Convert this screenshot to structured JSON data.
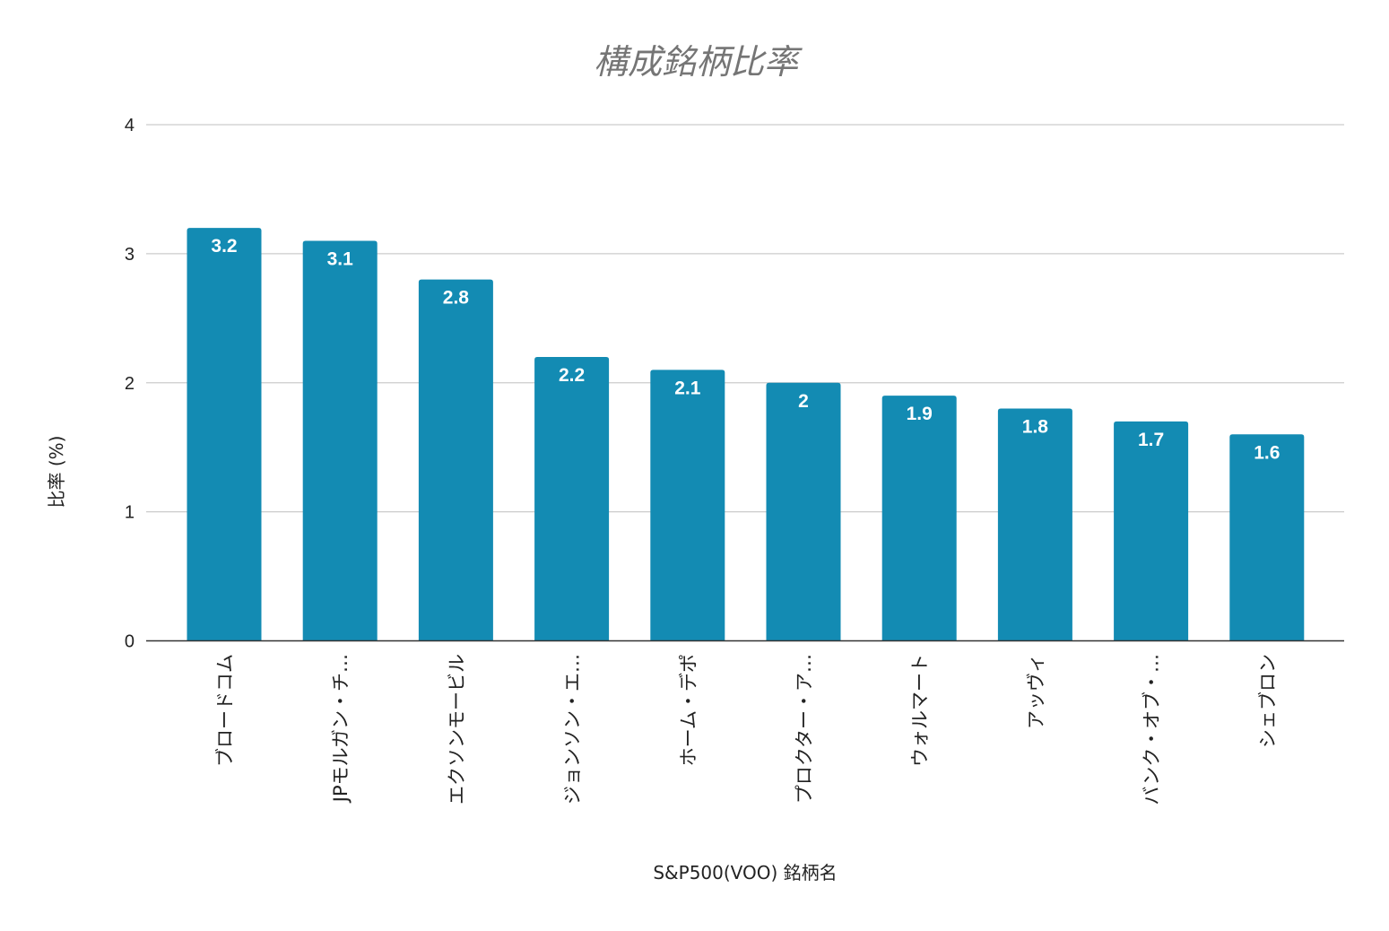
{
  "chart_data": {
    "type": "bar",
    "title": "構成銘柄比率",
    "xlabel": "S&P500(VOO) 銘柄名",
    "ylabel": "比率 (%)",
    "categories": [
      "ブロードコム",
      "JPモルガン・チ…",
      "エクソンモービル",
      "ジョンソン・エ…",
      "ホーム・デポ",
      "プロクター・ア…",
      "ウォルマート",
      "アッヴィ",
      "バンク・オブ・…",
      "シェブロン"
    ],
    "values": [
      3.2,
      3.1,
      2.8,
      2.2,
      2.1,
      2,
      1.9,
      1.8,
      1.7,
      1.6
    ],
    "value_labels": [
      "3.2",
      "3.1",
      "2.8",
      "2.2",
      "2.1",
      "2",
      "1.9",
      "1.8",
      "1.7",
      "1.6"
    ],
    "ylim": [
      0,
      4
    ],
    "yticks": [
      "0",
      "1",
      "2",
      "3",
      "4"
    ],
    "grid": true,
    "legend": "none",
    "colors": {
      "bar": "#138bb3",
      "grid": "#cccccc",
      "axis": "#333333",
      "title": "#757575",
      "text": "#222222",
      "bar_label": "#ffffff"
    }
  }
}
